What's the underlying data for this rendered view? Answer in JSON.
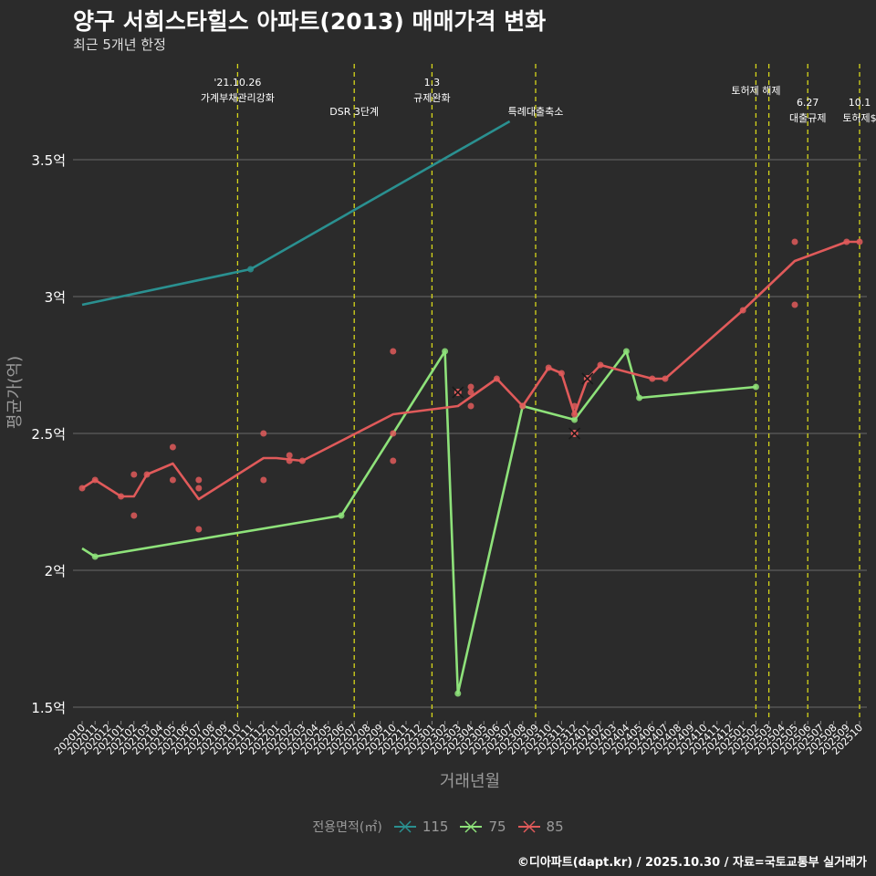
{
  "header": {
    "title": "양구 서희스타힐스 아파트(2013) 매매가격 변화",
    "subtitle": "최근 5개년 한정"
  },
  "caption": "©디아파트(dapt.kr) / 2025.10.30 / 자료=국토교통부 실거래가",
  "legend": {
    "title": "전용면적(㎡)",
    "items": [
      {
        "label": "115",
        "color": "#2a9090"
      },
      {
        "label": "75",
        "color": "#8ee27a"
      },
      {
        "label": "85",
        "color": "#e05a5a"
      }
    ]
  },
  "chart_data": {
    "type": "line",
    "xlabel": "거래년월",
    "ylabel": "평균가(억)",
    "x_categories": [
      "202010",
      "202011",
      "202012",
      "202101",
      "202102",
      "202103",
      "202104",
      "202105",
      "202106",
      "202107",
      "202108",
      "202109",
      "202110",
      "202111",
      "202112",
      "202201",
      "202202",
      "202203",
      "202204",
      "202205",
      "202206",
      "202207",
      "202208",
      "202209",
      "202210",
      "202211",
      "202212",
      "202301",
      "202302",
      "202303",
      "202304",
      "202305",
      "202306",
      "202307",
      "202308",
      "202309",
      "202310",
      "202311",
      "202312",
      "202401",
      "202402",
      "202403",
      "202404",
      "202405",
      "202406",
      "202407",
      "202408",
      "202409",
      "202410",
      "202411",
      "202412",
      "202501",
      "202502",
      "202503",
      "202504",
      "202505",
      "202506",
      "202507",
      "202508",
      "202509",
      "202510"
    ],
    "ylim": [
      1.45,
      3.85
    ],
    "y_ticks": [
      {
        "value": 1.5,
        "label": "1.5억"
      },
      {
        "value": 2.0,
        "label": "2억"
      },
      {
        "value": 2.5,
        "label": "2.5억"
      },
      {
        "value": 3.0,
        "label": "3억"
      },
      {
        "value": 3.5,
        "label": "3.5억"
      }
    ],
    "series": [
      {
        "name": "115",
        "color": "#2a9090",
        "line": [
          [
            "202010",
            2.97
          ],
          [
            "202111",
            3.1
          ],
          [
            "202307",
            3.64
          ]
        ],
        "points": [
          [
            "202111",
            3.1
          ]
        ],
        "crosses": []
      },
      {
        "name": "75",
        "color": "#8ee27a",
        "line": [
          [
            "202010",
            2.08
          ],
          [
            "202011",
            2.05
          ],
          [
            "202206",
            2.2
          ],
          [
            "202302",
            2.8
          ],
          [
            "202303",
            1.55
          ],
          [
            "202308",
            2.6
          ],
          [
            "202312",
            2.55
          ],
          [
            "202404",
            2.8
          ],
          [
            "202405",
            2.63
          ],
          [
            "202502",
            2.67
          ]
        ],
        "points": [
          [
            "202011",
            2.05
          ],
          [
            "202206",
            2.2
          ],
          [
            "202302",
            2.8
          ],
          [
            "202303",
            1.55
          ],
          [
            "202308",
            2.6
          ],
          [
            "202312",
            2.55
          ],
          [
            "202404",
            2.8
          ],
          [
            "202405",
            2.63
          ],
          [
            "202502",
            2.67
          ]
        ],
        "crosses": []
      },
      {
        "name": "85",
        "color": "#e05a5a",
        "line": [
          [
            "202010",
            2.3
          ],
          [
            "202011",
            2.33
          ],
          [
            "202101",
            2.27
          ],
          [
            "202102",
            2.27
          ],
          [
            "202103",
            2.35
          ],
          [
            "202105",
            2.39
          ],
          [
            "202107",
            2.26
          ],
          [
            "202112",
            2.41
          ],
          [
            "202201",
            2.41
          ],
          [
            "202203",
            2.4
          ],
          [
            "202210",
            2.57
          ],
          [
            "202303",
            2.6
          ],
          [
            "202306",
            2.7
          ],
          [
            "202308",
            2.6
          ],
          [
            "202310",
            2.74
          ],
          [
            "202311",
            2.72
          ],
          [
            "202312",
            2.57
          ],
          [
            "202401",
            2.7
          ],
          [
            "202402",
            2.75
          ],
          [
            "202406",
            2.7
          ],
          [
            "202407",
            2.7
          ],
          [
            "202501",
            2.95
          ],
          [
            "202505",
            3.13
          ],
          [
            "202509",
            3.2
          ],
          [
            "202510",
            3.2
          ]
        ],
        "points": [
          [
            "202010",
            2.3
          ],
          [
            "202011",
            2.33
          ],
          [
            "202101",
            2.27
          ],
          [
            "202102",
            2.35
          ],
          [
            "202102",
            2.2
          ],
          [
            "202103",
            2.35
          ],
          [
            "202105",
            2.45
          ],
          [
            "202105",
            2.33
          ],
          [
            "202107",
            2.33
          ],
          [
            "202107",
            2.3
          ],
          [
            "202107",
            2.15
          ],
          [
            "202112",
            2.5
          ],
          [
            "202112",
            2.33
          ],
          [
            "202202",
            2.42
          ],
          [
            "202202",
            2.4
          ],
          [
            "202203",
            2.4
          ],
          [
            "202210",
            2.8
          ],
          [
            "202210",
            2.5
          ],
          [
            "202210",
            2.4
          ],
          [
            "202304",
            2.67
          ],
          [
            "202304",
            2.65
          ],
          [
            "202304",
            2.6
          ],
          [
            "202306",
            2.7
          ],
          [
            "202308",
            2.6
          ],
          [
            "202310",
            2.74
          ],
          [
            "202311",
            2.72
          ],
          [
            "202312",
            2.6
          ],
          [
            "202312",
            2.57
          ],
          [
            "202402",
            2.75
          ],
          [
            "202406",
            2.7
          ],
          [
            "202407",
            2.7
          ],
          [
            "202501",
            2.95
          ],
          [
            "202505",
            3.2
          ],
          [
            "202505",
            2.97
          ],
          [
            "202509",
            3.2
          ],
          [
            "202510",
            3.2
          ]
        ],
        "crosses": [
          [
            "202303",
            2.65
          ],
          [
            "202312",
            2.5
          ],
          [
            "202401",
            2.7
          ]
        ]
      }
    ],
    "events": [
      {
        "x": "202110",
        "lines": [
          "'21.10.26",
          "가계부채관리강화"
        ],
        "row": 0
      },
      {
        "x": "202207",
        "lines": [
          "DSR 3단계"
        ],
        "row": 1
      },
      {
        "x": "202301",
        "lines": [
          "1.3",
          "규제완화"
        ],
        "row": 0
      },
      {
        "x": "202309",
        "lines": [
          "특례대출축소"
        ],
        "row": 1
      },
      {
        "x": "202502",
        "lines": [
          "토허제 해제"
        ],
        "row": 0.5
      },
      {
        "x": "202503",
        "lines": [],
        "row": 0
      },
      {
        "x": "202506",
        "lines": [
          "6.27",
          "대출규제"
        ],
        "row": 1
      },
      {
        "x": "202510",
        "lines": [
          "10.1",
          "토허제$"
        ],
        "row": 1
      }
    ]
  }
}
